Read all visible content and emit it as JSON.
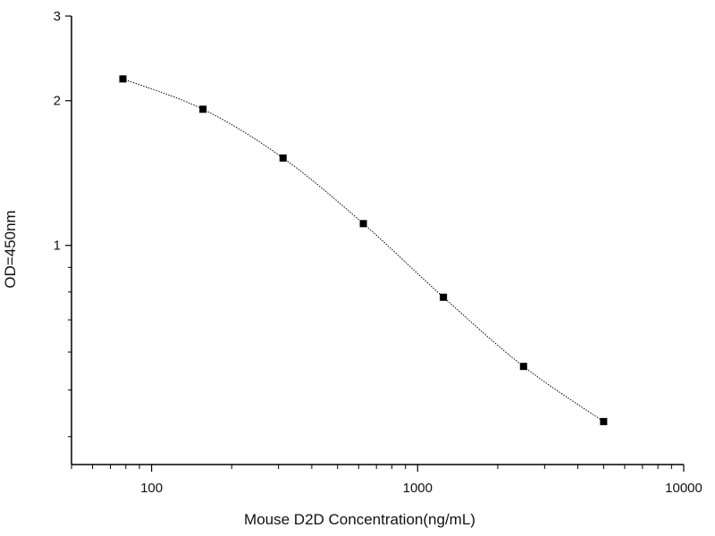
{
  "chart_data": {
    "type": "scatter",
    "title": "",
    "xlabel": "Mouse D2D Concentration(ng/mL)",
    "ylabel": "OD=450nm",
    "x_scale": "log",
    "y_scale": "log",
    "xlim": [
      50,
      10000
    ],
    "ylim": [
      0.35,
      3
    ],
    "x_ticks": [
      100,
      1000,
      10000
    ],
    "x_tick_labels": [
      "100",
      "1000",
      "10000"
    ],
    "y_ticks": [
      1,
      2,
      3
    ],
    "y_tick_labels": [
      "1",
      "2",
      "3"
    ],
    "grid": false,
    "legend": "none",
    "series": [
      {
        "x": [
          78,
          156,
          312,
          625,
          1250,
          2500,
          5000
        ],
        "y": [
          2.22,
          1.92,
          1.52,
          1.11,
          0.78,
          0.56,
          0.43
        ],
        "marker": "square",
        "line": "dotted",
        "color": "#000000"
      }
    ]
  }
}
